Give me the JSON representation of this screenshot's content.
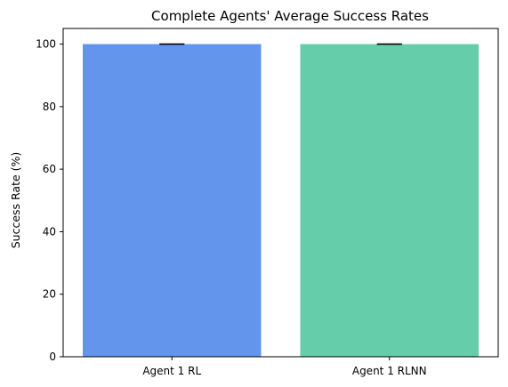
{
  "chart_data": {
    "type": "bar",
    "title": "Complete Agents' Average Success Rates",
    "xlabel": "",
    "ylabel": "Success Rate (%)",
    "categories": [
      "Agent 1 RL",
      "Agent 1 RLNN"
    ],
    "values": [
      100,
      100
    ],
    "errors": [
      0,
      0
    ],
    "colors": [
      "#6495ED",
      "#66CDAA"
    ],
    "ylim": [
      0,
      105
    ],
    "yticks": [
      0,
      20,
      40,
      60,
      80,
      100
    ],
    "grid": false
  }
}
